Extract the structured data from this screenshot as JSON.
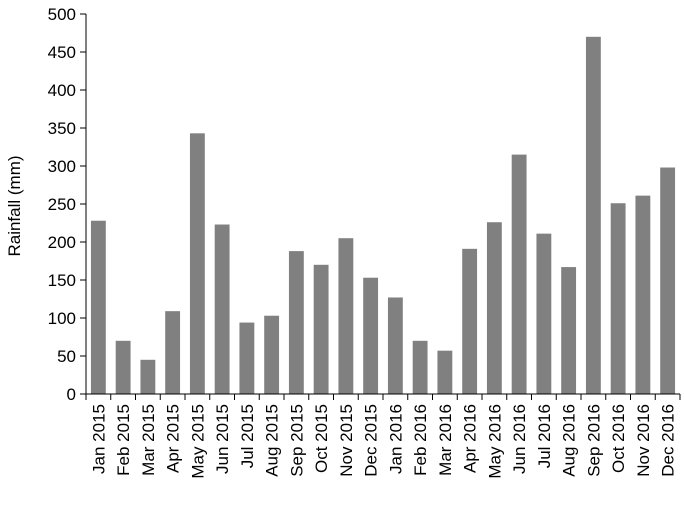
{
  "chart_data": {
    "type": "bar",
    "title": "",
    "xlabel": "",
    "ylabel": "Rainfall (mm)",
    "ylim": [
      0,
      500
    ],
    "yticks": [
      0,
      50,
      100,
      150,
      200,
      250,
      300,
      350,
      400,
      450,
      500
    ],
    "grid": false,
    "legend": "none",
    "bar_color": "#808080",
    "categories": [
      "Jan 2015",
      "Feb 2015",
      "Mar 2015",
      "Apr 2015",
      "May 2015",
      "Jun 2015",
      "Jul 2015",
      "Aug 2015",
      "Sep 2015",
      "Oct 2015",
      "Nov 2015",
      "Dec 2015",
      "Jan 2016",
      "Feb 2016",
      "Mar 2016",
      "Apr 2016",
      "May 2016",
      "Jun 2016",
      "Jul 2016",
      "Aug 2016",
      "Sep 2016",
      "Oct 2016",
      "Nov 2016",
      "Dec 2016"
    ],
    "values": [
      228,
      70,
      45,
      109,
      343,
      223,
      94,
      103,
      188,
      170,
      205,
      153,
      127,
      70,
      57,
      191,
      226,
      315,
      211,
      167,
      470,
      251,
      261,
      298
    ]
  }
}
